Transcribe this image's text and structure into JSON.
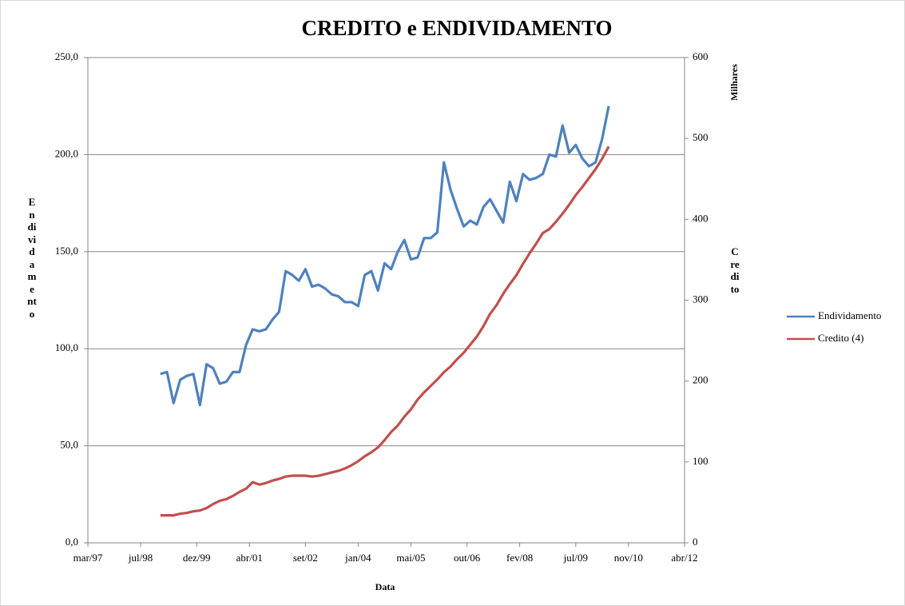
{
  "chart_data": {
    "type": "line",
    "title": "CREDITO e ENDIVIDAMENTO",
    "x_label": "Data",
    "y_label": "Endividamento",
    "y2_label": "Credito",
    "y2_unit": "Milhares",
    "x": [
      "1999-01",
      "1999-03",
      "1999-05",
      "1999-07",
      "1999-09",
      "1999-11",
      "2000-01",
      "2000-03",
      "2000-05",
      "2000-07",
      "2000-09",
      "2000-11",
      "2001-01",
      "2001-03",
      "2001-05",
      "2001-07",
      "2001-09",
      "2001-11",
      "2002-01",
      "2002-03",
      "2002-05",
      "2002-07",
      "2002-09",
      "2002-11",
      "2003-01",
      "2003-03",
      "2003-05",
      "2003-07",
      "2003-09",
      "2003-11",
      "2004-01",
      "2004-03",
      "2004-05",
      "2004-07",
      "2004-09",
      "2004-11",
      "2005-01",
      "2005-03",
      "2005-05",
      "2005-07",
      "2005-09",
      "2005-11",
      "2006-01",
      "2006-03",
      "2006-05",
      "2006-07",
      "2006-09",
      "2006-11",
      "2007-01",
      "2007-03",
      "2007-05",
      "2007-07",
      "2007-09",
      "2007-11",
      "2008-01",
      "2008-03",
      "2008-05",
      "2008-07",
      "2008-09",
      "2008-11",
      "2009-01",
      "2009-03",
      "2009-05",
      "2009-07",
      "2009-09",
      "2009-11",
      "2010-01",
      "2010-03",
      "2010-05"
    ],
    "series": [
      {
        "name": "Endividamento",
        "color": "#4f81bd",
        "axis": "y",
        "values": [
          87,
          88,
          72,
          84,
          86,
          87,
          71,
          92,
          90,
          82,
          83,
          88,
          88,
          102,
          110,
          109,
          110,
          115,
          119,
          140,
          138,
          135,
          141,
          132,
          133,
          131,
          128,
          127,
          124,
          124,
          122,
          138,
          140,
          130,
          144,
          141,
          150,
          156,
          146,
          147,
          157,
          157,
          160,
          196,
          182,
          172,
          163,
          166,
          164,
          173,
          177,
          171,
          165,
          186,
          176,
          190,
          187,
          188,
          190,
          200,
          199,
          215,
          201,
          205,
          198,
          194,
          196,
          208,
          225
        ]
      },
      {
        "name": "Credito (4)",
        "color": "#c0504d",
        "axis": "y2",
        "values": [
          34,
          34,
          34,
          36,
          37,
          39,
          40,
          43,
          48,
          52,
          54,
          58,
          63,
          67,
          75,
          72,
          74,
          77,
          79,
          82,
          83,
          83,
          83,
          82,
          83,
          85,
          87,
          89,
          92,
          96,
          101,
          107,
          112,
          118,
          127,
          137,
          145,
          156,
          165,
          177,
          186,
          194,
          202,
          211,
          218,
          227,
          235,
          245,
          255,
          268,
          283,
          294,
          308,
          320,
          331,
          345,
          358,
          370,
          383,
          388,
          397,
          407,
          418,
          430,
          440,
          451,
          462,
          475,
          490
        ]
      }
    ],
    "xlim": [
      "1997-03",
      "2012-04"
    ],
    "xticks": [
      {
        "value": "1997-03",
        "label": "mar/97"
      },
      {
        "value": "1998-07",
        "label": "jul/98"
      },
      {
        "value": "1999-12",
        "label": "dez/99"
      },
      {
        "value": "2001-04",
        "label": "abr/01"
      },
      {
        "value": "2002-09",
        "label": "set/02"
      },
      {
        "value": "2004-01",
        "label": "jan/04"
      },
      {
        "value": "2005-05",
        "label": "mai/05"
      },
      {
        "value": "2006-10",
        "label": "out/06"
      },
      {
        "value": "2008-02",
        "label": "fev/08"
      },
      {
        "value": "2009-07",
        "label": "jul/09"
      },
      {
        "value": "2010-11",
        "label": "nov/10"
      },
      {
        "value": "2012-04",
        "label": "abr/12"
      }
    ],
    "ylim": [
      0,
      250
    ],
    "yticks": [
      {
        "value": 0,
        "label": "0,0"
      },
      {
        "value": 50,
        "label": "50,0"
      },
      {
        "value": 100,
        "label": "100,0"
      },
      {
        "value": 150,
        "label": "150,0"
      },
      {
        "value": 200,
        "label": "200,0"
      },
      {
        "value": 250,
        "label": "250,0"
      }
    ],
    "y2lim": [
      0,
      600
    ],
    "y2ticks": [
      0,
      100,
      200,
      300,
      400,
      500,
      600
    ],
    "grid": true,
    "legend": "right"
  }
}
